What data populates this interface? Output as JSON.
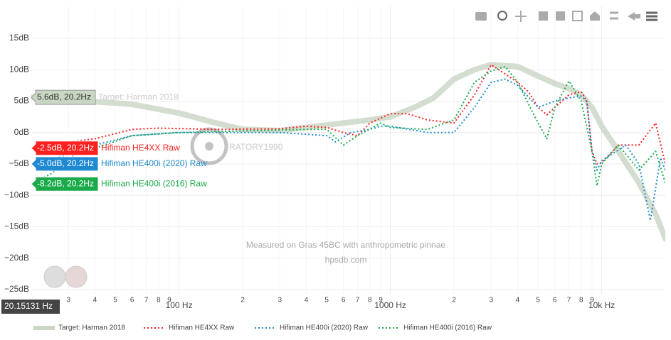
{
  "chart_data": {
    "type": "line",
    "xscale": "log",
    "xlim": [
      20,
      20000
    ],
    "ylim": [
      -25.7,
      20.2
    ],
    "xticks": [
      {
        "value": 30,
        "label": "3"
      },
      {
        "value": 40,
        "label": "4"
      },
      {
        "value": 50,
        "label": "5"
      },
      {
        "value": 60,
        "label": "6"
      },
      {
        "value": 70,
        "label": "7"
      },
      {
        "value": 80,
        "label": "8"
      },
      {
        "value": 90,
        "label": "9"
      },
      {
        "value": 100,
        "label": "100 Hz"
      },
      {
        "value": 200,
        "label": "2"
      },
      {
        "value": 300,
        "label": "3"
      },
      {
        "value": 400,
        "label": "4"
      },
      {
        "value": 500,
        "label": "5"
      },
      {
        "value": 600,
        "label": "6"
      },
      {
        "value": 700,
        "label": "7"
      },
      {
        "value": 800,
        "label": "8"
      },
      {
        "value": 900,
        "label": "9"
      },
      {
        "value": 1000,
        "label": "1000 Hz"
      },
      {
        "value": 2000,
        "label": "2"
      },
      {
        "value": 3000,
        "label": "3"
      },
      {
        "value": 4000,
        "label": "4"
      },
      {
        "value": 5000,
        "label": "5"
      },
      {
        "value": 6000,
        "label": "6"
      },
      {
        "value": 7000,
        "label": "7"
      },
      {
        "value": 8000,
        "label": "8"
      },
      {
        "value": 9000,
        "label": "9"
      },
      {
        "value": 10000,
        "label": "10k Hz"
      }
    ],
    "yticks": [
      {
        "value": 15,
        "label": "15dB"
      },
      {
        "value": 10,
        "label": "10dB"
      },
      {
        "value": 5,
        "label": "5dB"
      },
      {
        "value": 0,
        "label": "0dB"
      },
      {
        "value": -5,
        "label": "−5dB"
      },
      {
        "value": -10,
        "label": "−10dB"
      },
      {
        "value": -15,
        "label": "−15dB"
      },
      {
        "value": -20,
        "label": "−20dB"
      },
      {
        "value": -25,
        "label": "−25dB"
      }
    ],
    "grid": true,
    "legend": "bottom",
    "watermark": "RATORY1990",
    "annotations": [
      "Measured on Gras 45BC with anthropometric pinnae",
      "hpsdb.com"
    ],
    "x_hover_label": "20.15131 Hz",
    "series": [
      {
        "name": "Target: Harman 2018",
        "color": "#c9d6c4",
        "style": "solid",
        "hover_label": "5.6dB, 20.2Hz",
        "x": [
          20,
          60,
          100,
          150,
          200,
          300,
          500,
          800,
          1000,
          1300,
          1600,
          2000,
          2500,
          3000,
          4000,
          5000,
          6000,
          7000,
          8000,
          9000,
          10000,
          12000,
          15000,
          18000,
          20000
        ],
        "values": [
          5.6,
          4.5,
          3.1,
          1.5,
          0.5,
          0.3,
          1.2,
          2,
          2.5,
          4,
          5.5,
          8.5,
          10,
          10.8,
          10.5,
          9,
          7.8,
          7,
          6,
          4,
          1,
          -3,
          -8,
          -13,
          -16.9
        ]
      },
      {
        "name": "Hifiman HE4XX Raw",
        "color": "#ff2020",
        "style": "dotted",
        "hover_label": "-2.5dB, 20.2Hz",
        "x": [
          20,
          30,
          40,
          60,
          80,
          150,
          300,
          400,
          500,
          600,
          700,
          800,
          1000,
          1200,
          1500,
          2000,
          2500,
          3000,
          4000,
          4500,
          5000,
          5500,
          6000,
          7000,
          8000,
          8500,
          9000,
          9500,
          10000,
          12000,
          15000,
          18000,
          20000
        ],
        "values": [
          -2.5,
          -1.5,
          -1,
          0.5,
          0.7,
          0.5,
          0.6,
          1,
          0.8,
          0,
          -0.5,
          1.5,
          3,
          3,
          2,
          1.5,
          6,
          10.8,
          8,
          6.5,
          4,
          2.8,
          4,
          6,
          6.5,
          5,
          -3,
          -5,
          -4.8,
          -2,
          -2,
          1.5,
          -5
        ]
      },
      {
        "name": "Hifiman HE400i (2020) Raw",
        "color": "#1f8ad2",
        "style": "dotted",
        "hover_label": "-5.0dB, 20.2Hz",
        "x": [
          20,
          30,
          40,
          60,
          100,
          300,
          500,
          550,
          650,
          800,
          900,
          1000,
          1500,
          2000,
          2500,
          3000,
          3500,
          4000,
          5000,
          6000,
          7000,
          8000,
          8500,
          9000,
          9500,
          10000,
          13000,
          15000,
          17000,
          19000,
          20000
        ],
        "values": [
          -5,
          -3.5,
          -2,
          -0.5,
          0,
          0,
          -0.5,
          -1.5,
          0,
          0.5,
          1,
          1,
          0,
          0,
          4,
          8,
          8.5,
          7.5,
          4,
          5,
          5.5,
          5.8,
          5,
          -3,
          -6,
          -4.5,
          -2,
          -5,
          -14,
          -4,
          -6
        ]
      },
      {
        "name": "Hifiman HE400i (2016) Raw",
        "color": "#1aaa4a",
        "style": "dotted",
        "hover_label": "-8.2dB, 20.2Hz",
        "x": [
          20,
          25,
          30,
          40,
          60,
          100,
          400,
          500,
          600,
          700,
          900,
          1000,
          1500,
          2000,
          2500,
          3000,
          3500,
          4000,
          5000,
          5500,
          6000,
          7000,
          8000,
          9000,
          9500,
          10000,
          12000,
          15000,
          18000,
          20000
        ],
        "values": [
          -8.2,
          -6.5,
          -4,
          -2.5,
          -0.5,
          0,
          0.5,
          0.5,
          -2,
          -0.5,
          1.5,
          0.8,
          0.5,
          2,
          8,
          9.8,
          10.5,
          8,
          1.5,
          -1,
          4,
          8.2,
          5,
          -3,
          -8.5,
          -5,
          -2,
          -6,
          -3,
          -8
        ]
      }
    ]
  }
}
